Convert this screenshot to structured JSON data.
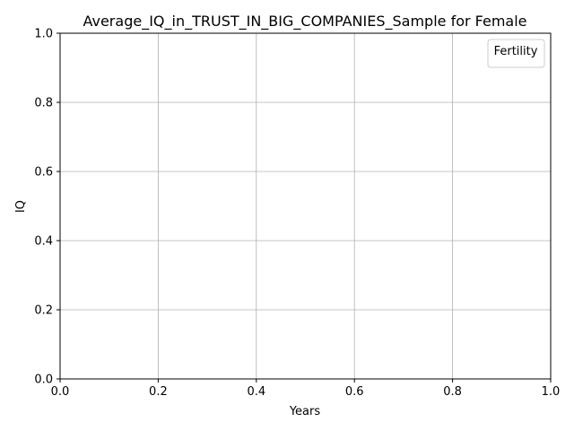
{
  "chart_data": {
    "type": "line",
    "title": "Average_IQ_in_TRUST_IN_BIG_COMPANIES_Sample for Female",
    "xlabel": "Years",
    "ylabel": "IQ",
    "xlim": [
      0.0,
      1.0
    ],
    "ylim": [
      0.0,
      1.0
    ],
    "xticks": [
      "0.0",
      "0.2",
      "0.4",
      "0.6",
      "0.8",
      "1.0"
    ],
    "yticks": [
      "0.0",
      "0.2",
      "0.4",
      "0.6",
      "0.8",
      "1.0"
    ],
    "grid": true,
    "legend": {
      "title": "Fertility",
      "placement": "top-right",
      "entries": []
    },
    "series": []
  }
}
